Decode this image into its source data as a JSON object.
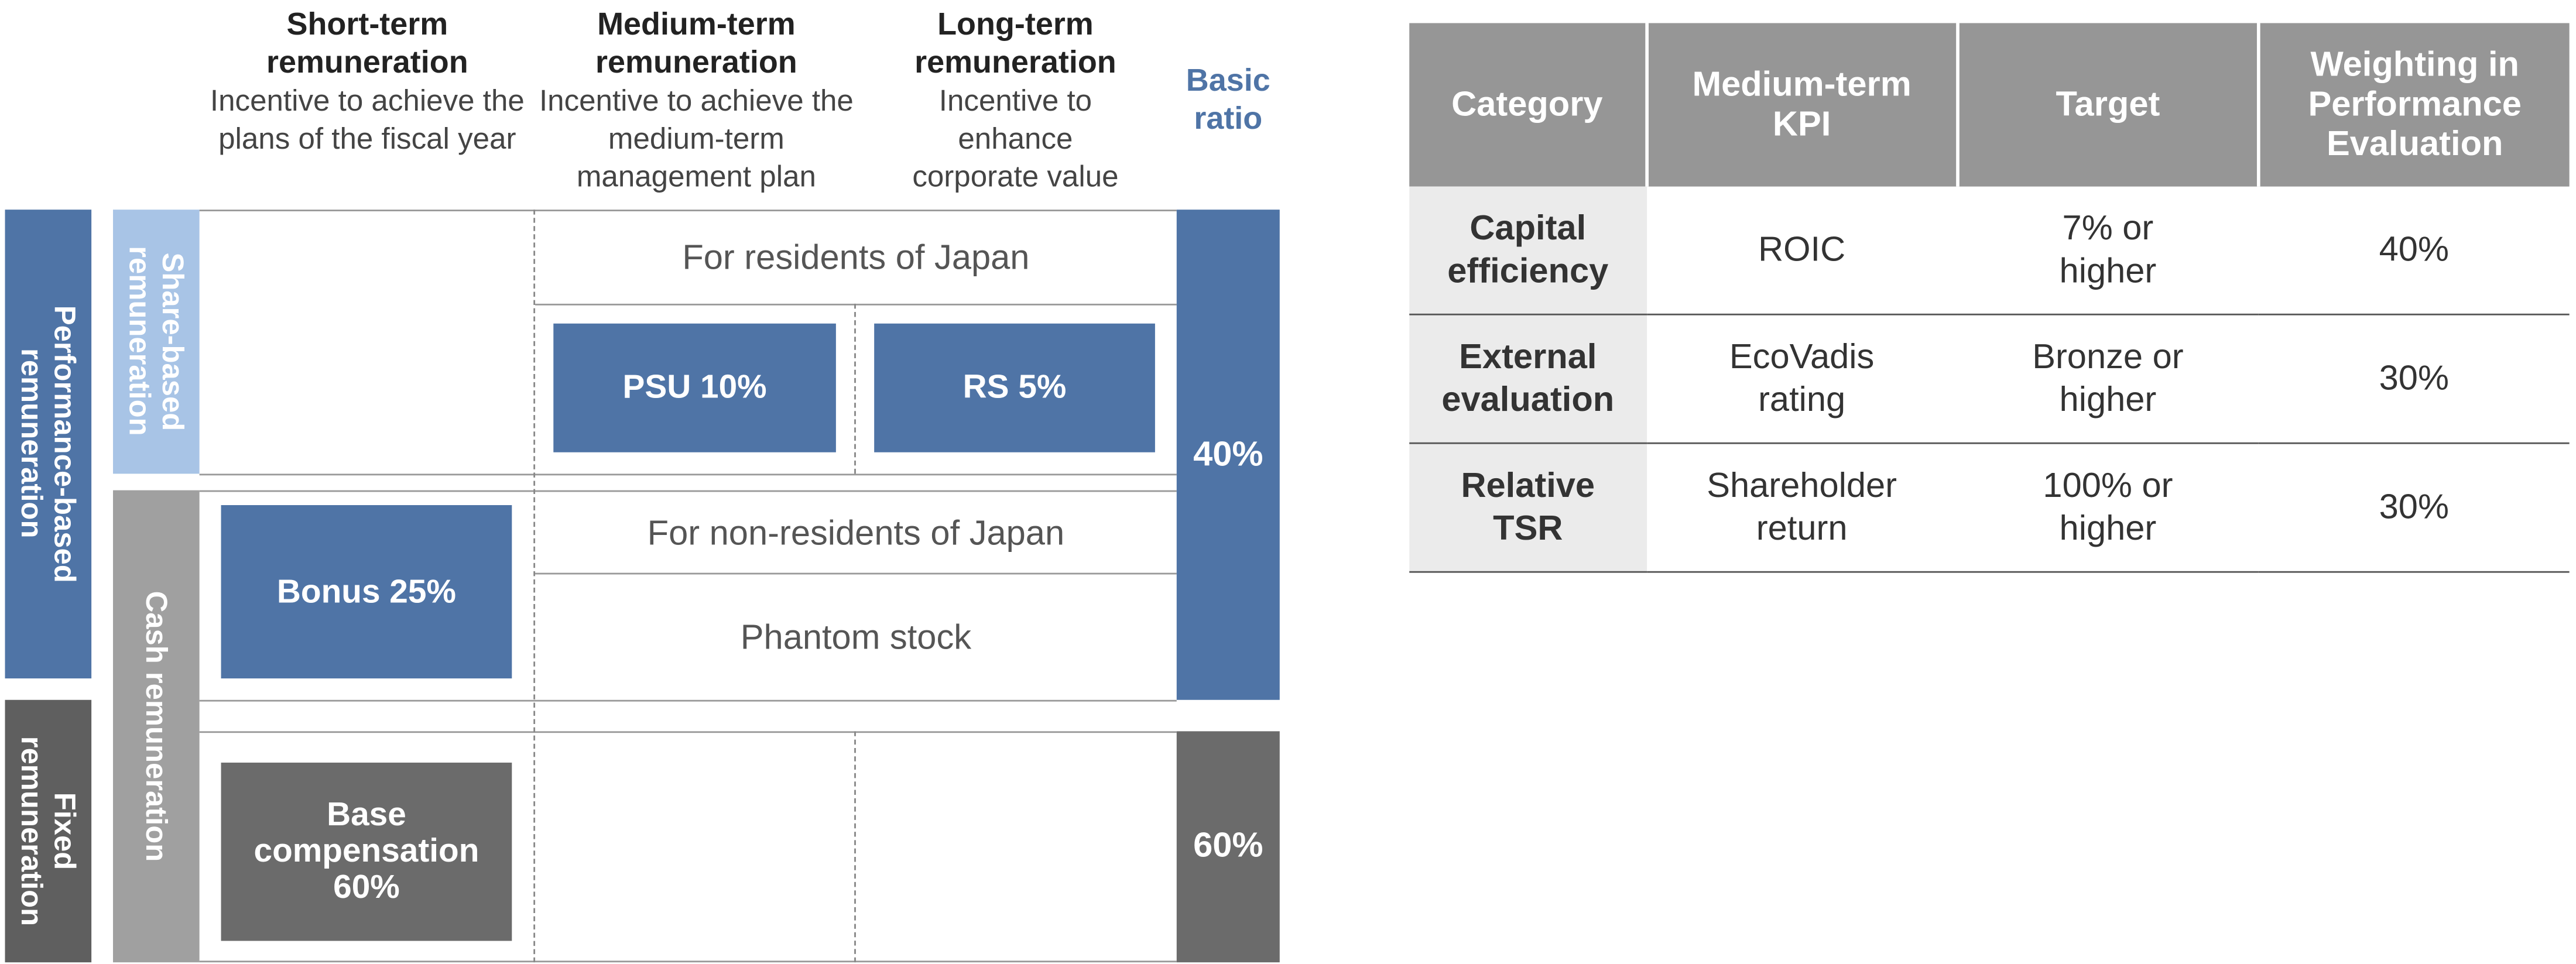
{
  "diagram": {
    "columns": [
      {
        "title": "Short-term remuneration",
        "description": "Incentive to achieve the plans of the fiscal year"
      },
      {
        "title": "Medium-term remuneration",
        "description": "Incentive to achieve the medium-term management plan"
      },
      {
        "title": "Long-term remuneration",
        "description": "Incentive to enhance corporate value"
      }
    ],
    "ratio_header": "Basic ratio",
    "row_groups": [
      "Performance-based remuneration",
      "Fixed remuneration"
    ],
    "sub_groups": [
      "Share-based remuneration",
      "Cash remuneration"
    ],
    "notes": [
      "For residents of Japan",
      "For non-residents of Japan",
      "Phantom stock"
    ],
    "boxes": [
      "PSU 10%",
      "RS 5%",
      "Bonus 25%",
      "Base compensation 60%"
    ],
    "ratios": [
      "40%",
      "60%"
    ]
  },
  "table": {
    "header": [
      "Category",
      "Medium-term KPI",
      "Target",
      "Weighting in Performance Evaluation"
    ],
    "rows": [
      [
        "Capital efficiency",
        "ROIC",
        "7% or higher",
        "40%"
      ],
      [
        "External evaluation",
        "EcoVadis rating",
        "Bronze or higher",
        "30%"
      ],
      [
        "Relative TSR",
        "Shareholder return",
        "100% or higher",
        "30%"
      ]
    ]
  }
}
